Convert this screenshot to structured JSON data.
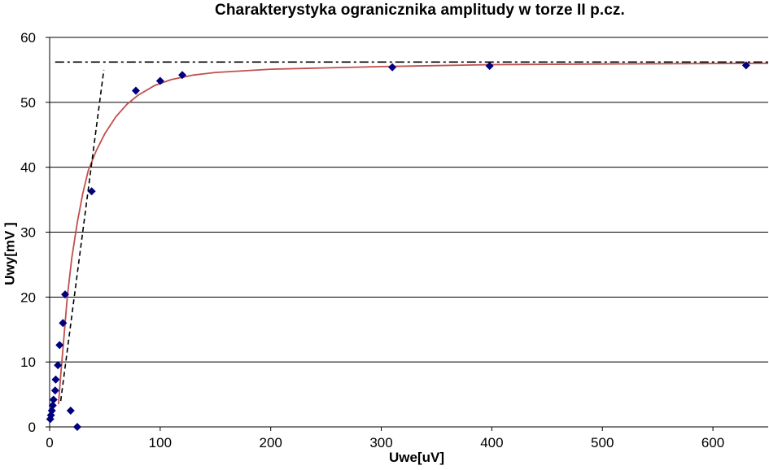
{
  "chart_data": {
    "type": "scatter",
    "title": "Charakterystyka ogranicznika amplitudy  w torze II p.cz.",
    "xlabel": "Uwe[uV]",
    "ylabel": "Uwy[mV ]",
    "xlim": [
      0,
      650
    ],
    "ylim": [
      0,
      60
    ],
    "xticks": [
      0,
      100,
      200,
      300,
      400,
      500,
      600
    ],
    "yticks": [
      0,
      10,
      20,
      30,
      40,
      50,
      60
    ],
    "grid": "horizontal",
    "colors": {
      "markers": "#00007f",
      "trend": "#c0504d",
      "guides": "#000000"
    },
    "series": [
      {
        "type": "scatter",
        "marker": "diamond",
        "points": [
          [
            0.5,
            1.2
          ],
          [
            1.2,
            1.8
          ],
          [
            2,
            2.5
          ],
          [
            2.8,
            3.3
          ],
          [
            3.5,
            4.2
          ],
          [
            5,
            5.6
          ],
          [
            5.5,
            7.3
          ],
          [
            7.5,
            9.5
          ],
          [
            9,
            12.6
          ],
          [
            12,
            16
          ],
          [
            14,
            20.4
          ],
          [
            19,
            2.5
          ],
          [
            25,
            0
          ],
          [
            38,
            36.3
          ],
          [
            78,
            51.8
          ],
          [
            100,
            53.3
          ],
          [
            120,
            54.2
          ],
          [
            310,
            55.4
          ],
          [
            398,
            55.6
          ],
          [
            630,
            55.7
          ]
        ]
      },
      {
        "type": "line",
        "style": "solid",
        "points": [
          [
            8,
            3.5
          ],
          [
            10,
            8
          ],
          [
            13,
            14
          ],
          [
            16,
            20
          ],
          [
            20,
            26
          ],
          [
            25,
            31.5
          ],
          [
            30,
            36
          ],
          [
            35,
            39.5
          ],
          [
            42,
            42.5
          ],
          [
            50,
            45.2
          ],
          [
            60,
            47.8
          ],
          [
            70,
            49.7
          ],
          [
            80,
            51.1
          ],
          [
            95,
            52.6
          ],
          [
            110,
            53.5
          ],
          [
            130,
            54.2
          ],
          [
            150,
            54.6
          ],
          [
            200,
            55.1
          ],
          [
            250,
            55.3
          ],
          [
            300,
            55.5
          ],
          [
            400,
            55.8
          ],
          [
            500,
            55.9
          ],
          [
            650,
            56
          ]
        ]
      },
      {
        "type": "line",
        "style": "dashed",
        "points": [
          [
            10,
            4
          ],
          [
            49,
            55
          ]
        ]
      },
      {
        "type": "line",
        "style": "dash-dot",
        "points": [
          [
            5,
            56.2
          ],
          [
            650,
            56.2
          ]
        ]
      }
    ]
  }
}
